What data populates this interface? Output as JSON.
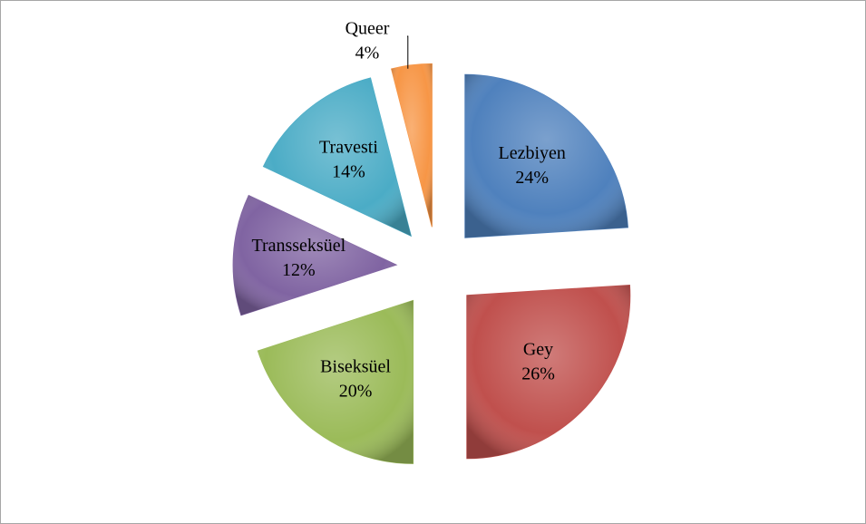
{
  "chart_data": {
    "type": "pie",
    "categories": [
      "Lezbiyen",
      "Gey",
      "Biseksüel",
      "Transseksüel",
      "Travesti",
      "Queer"
    ],
    "values": [
      24,
      26,
      20,
      12,
      14,
      4
    ],
    "value_labels": [
      "24%",
      "26%",
      "20%",
      "12%",
      "14%",
      "4%"
    ],
    "colors": [
      "#4f81bd",
      "#c0504d",
      "#9bbb59",
      "#8064a2",
      "#4bacc6",
      "#f79646"
    ]
  }
}
